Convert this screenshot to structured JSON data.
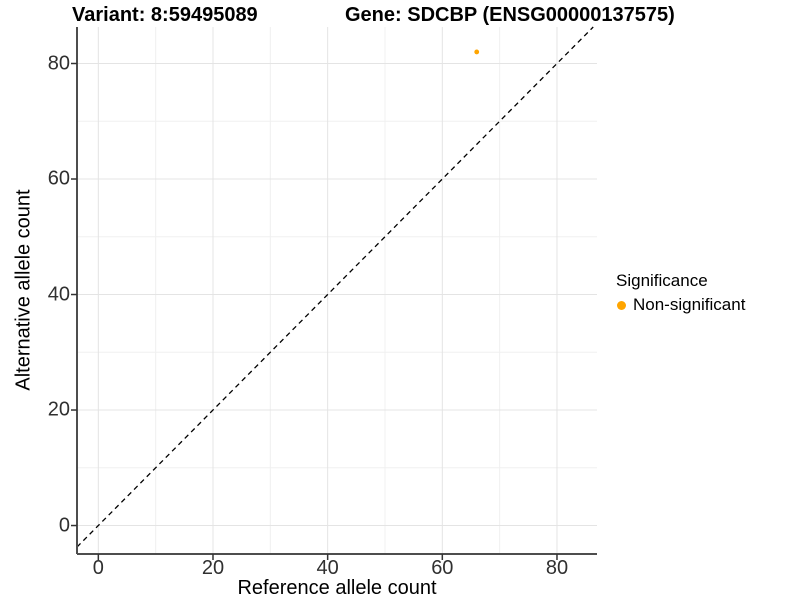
{
  "chart_data": {
    "type": "scatter",
    "titles": {
      "left": "Variant: 8:59495089",
      "right": "Gene: SDCBP (ENSG00000137575)"
    },
    "xlabel": "Reference allele count",
    "ylabel": "Alternative allele count",
    "xlim": [
      -3.72,
      86.98
    ],
    "ylim": [
      -4.93,
      86.32
    ],
    "x_ticks": [
      0,
      20,
      40,
      60,
      80
    ],
    "y_ticks": [
      0,
      20,
      40,
      60,
      80
    ],
    "x_minor_grid": [
      10,
      30,
      50,
      70
    ],
    "y_minor_grid": [
      10,
      30,
      50,
      70
    ],
    "grid": true,
    "points": [
      {
        "x": 66,
        "y": 82,
        "series": "Non-significant"
      }
    ],
    "reference_line": {
      "kind": "identity",
      "style": "dashed"
    },
    "legend": {
      "title": "Significance",
      "position": "right",
      "items": [
        {
          "label": "Non-significant",
          "color": "#FFA500",
          "marker": "circle"
        }
      ]
    },
    "colors": {
      "point": "#FFA500",
      "grid_major": "#e4e4e4",
      "grid_minor": "#f0f0f0",
      "axis_line": "#4d4d4d",
      "tick_mark": "#333333",
      "reference_line": "#000000"
    }
  }
}
